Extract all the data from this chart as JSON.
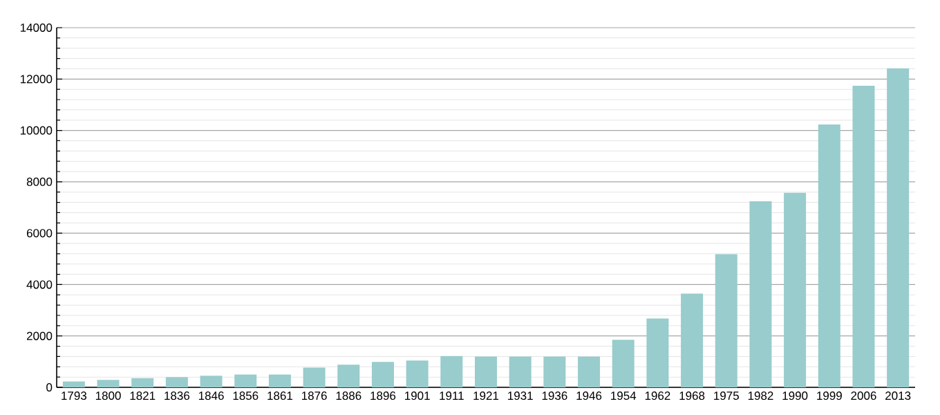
{
  "chart_data": {
    "type": "bar",
    "categories": [
      "1793",
      "1800",
      "1821",
      "1836",
      "1846",
      "1856",
      "1861",
      "1876",
      "1886",
      "1896",
      "1901",
      "1911",
      "1921",
      "1931",
      "1936",
      "1946",
      "1954",
      "1962",
      "1968",
      "1975",
      "1982",
      "1990",
      "1999",
      "2006",
      "2013"
    ],
    "values": [
      230,
      290,
      360,
      400,
      450,
      500,
      500,
      770,
      880,
      990,
      1040,
      1220,
      1200,
      1200,
      1200,
      1200,
      1850,
      2680,
      3650,
      5180,
      7240,
      7570,
      10230,
      11740,
      12420
    ],
    "color": "#99cccc",
    "ylim": [
      0,
      14000
    ],
    "yticks": [
      0,
      2000,
      4000,
      6000,
      8000,
      10000,
      12000,
      14000
    ],
    "grid": "y"
  }
}
